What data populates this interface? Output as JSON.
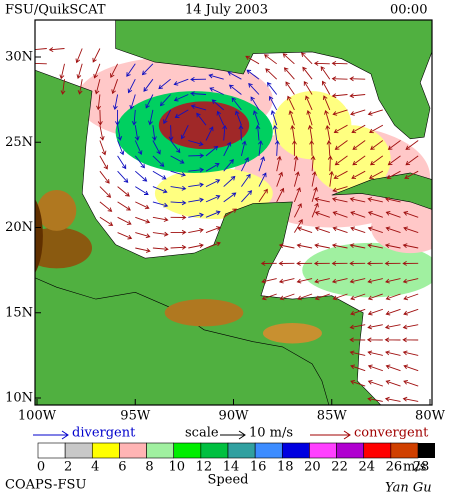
{
  "header": {
    "title": "FSU/QuikSCAT",
    "date": "14 July 2003",
    "time": "00:00"
  },
  "map": {
    "lat_labels": [
      "30N",
      "25N",
      "20N",
      "15N",
      "10N"
    ],
    "lon_labels": [
      "100W",
      "95W",
      "90W",
      "85W",
      "80W"
    ]
  },
  "legend": {
    "divergent": "divergent",
    "scale": "scale",
    "scale_value": "10 m/s",
    "convergent": "convergent"
  },
  "colorbar": {
    "labels": [
      0,
      2,
      4,
      6,
      8,
      10,
      12,
      14,
      16,
      18,
      20,
      22,
      24,
      26,
      28
    ],
    "unit": "m/s",
    "title": "Speed",
    "colors": [
      "#ffffff",
      "#c8c8c8",
      "#ffff00",
      "#ffb4b4",
      "#a0f0a0",
      "#00ee00",
      "#00c040",
      "#30a0a0",
      "#3c8cff",
      "#0000e0",
      "#ff40ff",
      "#b000d0",
      "#ff0000",
      "#d04000"
    ]
  },
  "footer": {
    "org": "COAPS-FSU",
    "author": "Yan Gu"
  }
}
